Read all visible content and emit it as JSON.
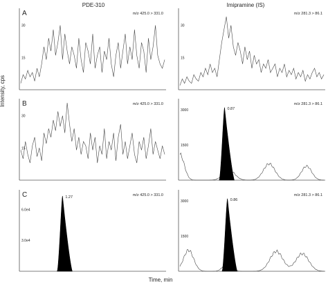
{
  "figure": {
    "column_titles": [
      "PDE-310",
      "Imipramine (IS)"
    ],
    "ylabel": "Intensity, cps",
    "xlabel": "Time, min"
  },
  "chart_data": [
    {
      "type": "line",
      "panel": "A",
      "column": "PDE-310",
      "annotation": "m/z 425.0 > 331.0",
      "yticks": [
        "30",
        "15"
      ],
      "ylim": [
        0,
        36
      ],
      "noise_profile": [
        3,
        7,
        5,
        9,
        6,
        8,
        4,
        10,
        6,
        12,
        20,
        14,
        24,
        18,
        28,
        16,
        22,
        30,
        14,
        26,
        18,
        12,
        20,
        16,
        10,
        24,
        14,
        8,
        22,
        18,
        12,
        26,
        10,
        16,
        20,
        8,
        18,
        14,
        24,
        12,
        6,
        16,
        22,
        10,
        18,
        26,
        12,
        20,
        14,
        28,
        16,
        10,
        22,
        18,
        8,
        24,
        14,
        20,
        30,
        16,
        12,
        10,
        14
      ]
    },
    {
      "type": "line",
      "panel": "",
      "column": "Imipramine (IS)",
      "annotation": "m/z 281.3 > 86.1",
      "yticks": [
        "30",
        "15"
      ],
      "ylim": [
        0,
        36
      ],
      "noise_profile": [
        2,
        5,
        3,
        6,
        4,
        3,
        7,
        5,
        4,
        8,
        6,
        10,
        7,
        12,
        8,
        10,
        6,
        14,
        22,
        28,
        34,
        24,
        30,
        20,
        16,
        22,
        18,
        12,
        20,
        14,
        18,
        10,
        16,
        12,
        14,
        8,
        12,
        10,
        14,
        8,
        10,
        12,
        6,
        10,
        8,
        12,
        6,
        9,
        7,
        10,
        5,
        8,
        6,
        9,
        4,
        7,
        5,
        8,
        10,
        6,
        8,
        5,
        7
      ]
    },
    {
      "type": "line",
      "panel": "B",
      "column": "PDE-310",
      "annotation": "m/z 425.0 > 331.0",
      "yticks": [
        "30",
        "15"
      ],
      "ylim": [
        0,
        36
      ],
      "noise_profile": [
        14,
        10,
        18,
        12,
        8,
        16,
        20,
        11,
        15,
        9,
        22,
        17,
        24,
        20,
        28,
        23,
        32,
        25,
        30,
        22,
        36,
        26,
        18,
        24,
        14,
        20,
        12,
        18,
        16,
        10,
        22,
        14,
        20,
        8,
        16,
        12,
        24,
        10,
        18,
        14,
        22,
        9,
        20,
        26,
        12,
        18,
        10,
        16,
        22,
        12,
        8,
        18,
        14,
        20,
        10,
        16,
        24,
        12,
        18,
        14,
        10,
        16,
        12
      ]
    },
    {
      "type": "line",
      "panel": "",
      "column": "Imipramine (IS)",
      "annotation": "m/z 281.3 > 86.1",
      "peak_label": "0.87",
      "yticks": [
        "3000",
        "1500"
      ],
      "ylim": [
        0,
        3300
      ],
      "baseline_bumps": [
        {
          "x": 0.0,
          "height": 1100,
          "width": 0.03
        },
        {
          "x": 0.34,
          "height": 450,
          "width": 0.04
        },
        {
          "x": 0.62,
          "height": 700,
          "width": 0.04
        },
        {
          "x": 0.88,
          "height": 600,
          "width": 0.035
        }
      ],
      "peak": {
        "x": 0.31,
        "height": 3100
      }
    },
    {
      "type": "area",
      "panel": "C",
      "column": "PDE-310",
      "annotation": "m/z 425.0 > 331.0",
      "peak_label": "1.27",
      "yticks": [
        "6.0e4",
        "3.0e4"
      ],
      "ylim": [
        0,
        75000
      ],
      "peak": {
        "x": 0.29,
        "height": 73000
      }
    },
    {
      "type": "line",
      "panel": "",
      "column": "Imipramine (IS)",
      "annotation": "m/z 281.3 > 86.1",
      "peak_label": "0.86",
      "yticks": [
        "3000",
        "1500"
      ],
      "ylim": [
        0,
        3300
      ],
      "baseline_bumps": [
        {
          "x": 0.06,
          "height": 900,
          "width": 0.035
        },
        {
          "x": 0.33,
          "height": 350,
          "width": 0.03
        },
        {
          "x": 0.67,
          "height": 850,
          "width": 0.045
        },
        {
          "x": 0.85,
          "height": 750,
          "width": 0.045
        }
      ],
      "peak": {
        "x": 0.33,
        "height": 3100
      }
    }
  ]
}
